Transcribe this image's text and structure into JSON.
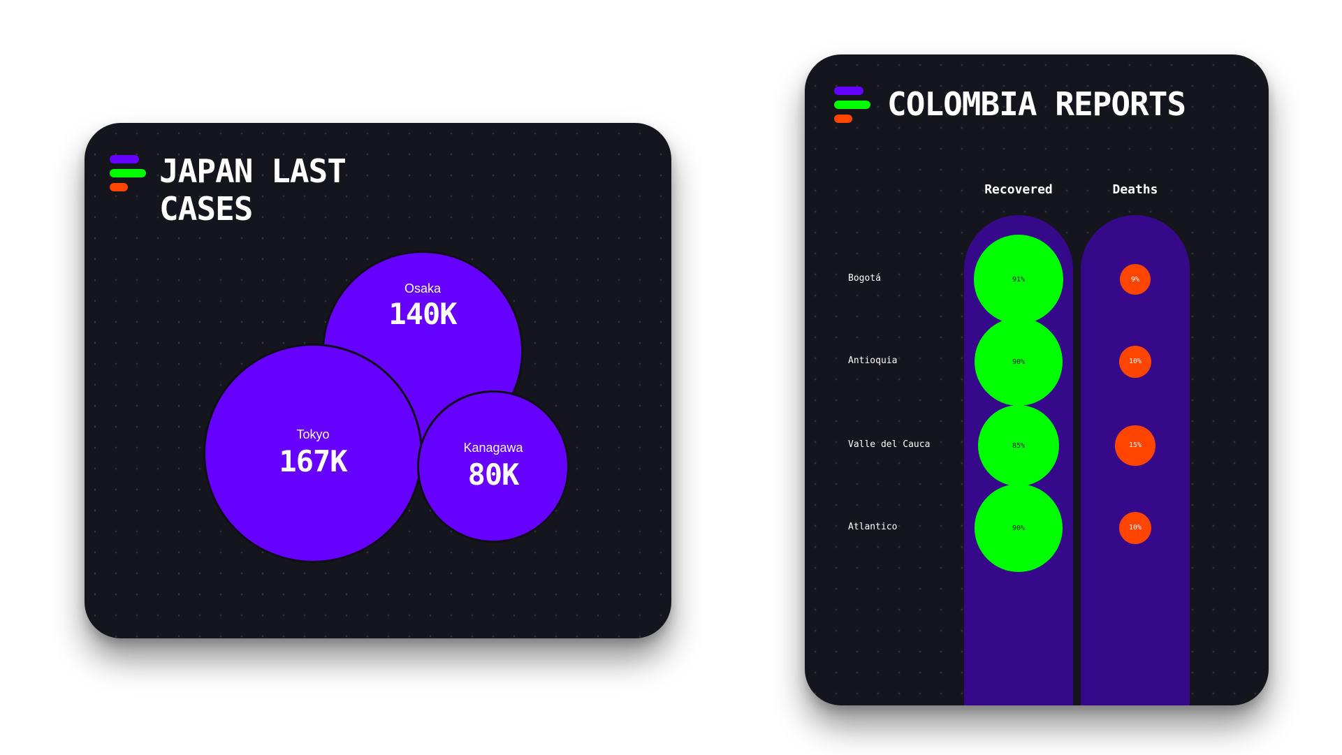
{
  "colors": {
    "card_bg": "#15151d",
    "purple": "#6600ff",
    "column_purple": "#36098a",
    "green": "#00ff00",
    "orange": "#ff4500"
  },
  "japan": {
    "title": "JAPAN LAST CASES"
  },
  "colombia": {
    "title": "COLOMBIA REPORTS",
    "headers": {
      "recovered": "Recovered",
      "deaths": "Deaths"
    }
  },
  "chart_data": [
    {
      "type": "bubble",
      "title": "JAPAN LAST CASES",
      "categories": [
        "Osaka",
        "Tokyo",
        "Kanagawa"
      ],
      "values": [
        140,
        167,
        80
      ],
      "value_labels": [
        "140K",
        "167K",
        "80K"
      ],
      "unit": "K"
    },
    {
      "type": "table",
      "title": "COLOMBIA REPORTS",
      "categories": [
        "Bogotá",
        "Antioquia",
        "Valle del Cauca",
        "Atlantico"
      ],
      "series": [
        {
          "name": "Recovered",
          "values": [
            91,
            90,
            85,
            90
          ],
          "labels": [
            "91%",
            "90%",
            "85%",
            "90%"
          ],
          "color": "#00ff00"
        },
        {
          "name": "Deaths",
          "values": [
            9,
            10,
            15,
            10
          ],
          "labels": [
            "9%",
            "10%",
            "15%",
            "10%"
          ],
          "color": "#ff4500"
        }
      ]
    }
  ]
}
